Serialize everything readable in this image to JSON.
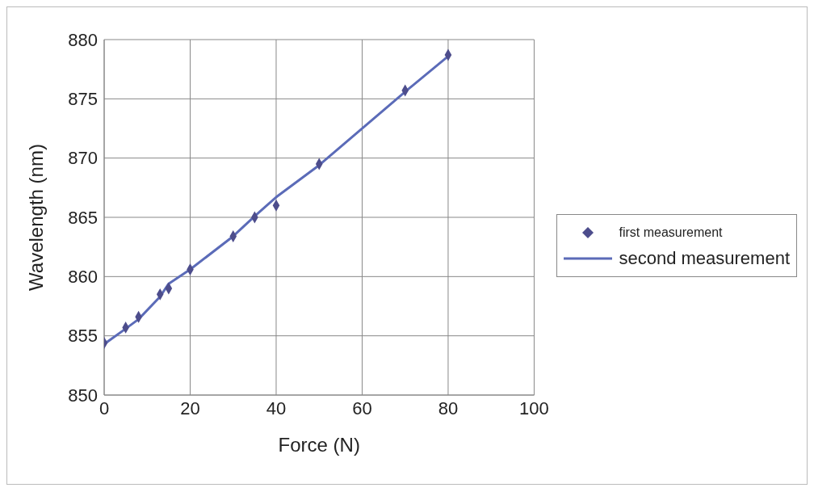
{
  "chart_data": {
    "type": "scatter",
    "xlabel": "Force (N)",
    "ylabel": "Wavelength (nm)",
    "x": [
      0,
      5,
      8,
      13,
      15,
      20,
      30,
      35,
      40,
      50,
      70,
      80
    ],
    "series": [
      {
        "name": "first measurement",
        "color": "#4d4d8c",
        "marker": "diamond",
        "values": [
          854.4,
          855.7,
          856.6,
          858.5,
          859.0,
          860.6,
          863.4,
          865.0,
          866.0,
          869.5,
          875.7,
          878.7
        ]
      },
      {
        "name": "second measurement",
        "type": "line",
        "color": "#5b6bb8",
        "marker": "none",
        "line_style": "solid",
        "values": [
          854.3,
          855.6,
          856.4,
          858.3,
          859.4,
          860.6,
          863.4,
          865.1,
          866.7,
          869.4,
          875.6,
          878.6
        ]
      }
    ],
    "xlim": [
      0,
      100
    ],
    "xticks": [
      0,
      20,
      40,
      60,
      80,
      100
    ],
    "ylim": [
      850,
      880
    ],
    "yticks": [
      850,
      855,
      860,
      865,
      870,
      875,
      880
    ],
    "grid": true,
    "legend": "right"
  }
}
